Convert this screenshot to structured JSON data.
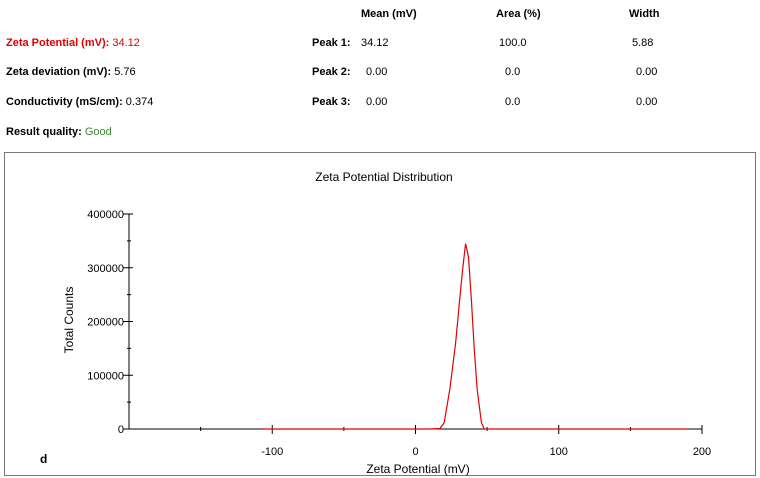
{
  "header": {
    "col_mean": "Mean (mV)",
    "col_area": "Area (%)",
    "col_width": "Width"
  },
  "summary": {
    "zeta_potential_label": "Zeta Potential (mV):",
    "zeta_potential_value": "34.12",
    "zeta_deviation_label": "Zeta deviation (mV):",
    "zeta_deviation_value": "5.76",
    "conductivity_label": "Conductivity (mS/cm):",
    "conductivity_value": "0.374",
    "result_quality_label": "Result quality:",
    "result_quality_value": "Good"
  },
  "peaks": [
    {
      "label": "Peak 1:",
      "mean": "34.12",
      "area": "100.0",
      "width": "5.88"
    },
    {
      "label": "Peak 2:",
      "mean": "0.00",
      "area": "0.0",
      "width": "0.00"
    },
    {
      "label": "Peak 3:",
      "mean": "0.00",
      "area": "0.0",
      "width": "0.00"
    }
  ],
  "colors": {
    "zeta_label": "#e00000",
    "quality_good": "#3a8a2a",
    "series_line": "#e00000"
  },
  "panel_letter": "d",
  "chart_data": {
    "type": "line",
    "title": "Zeta Potential Distribution",
    "xlabel": "Zeta Potential (mV)",
    "ylabel": "Total Counts",
    "xlim": [
      -200,
      200
    ],
    "ylim": [
      0,
      400000
    ],
    "x_ticks": [
      -100,
      0,
      100,
      200
    ],
    "y_ticks": [
      0,
      100000,
      200000,
      300000,
      400000
    ],
    "grid": false,
    "legend": "none",
    "series": [
      {
        "x": [
          -107,
          10,
          17,
          20,
          24,
          28,
          31,
          33,
          35,
          37,
          39,
          41,
          43,
          46,
          48,
          52,
          80,
          190
        ],
        "y": [
          0,
          0,
          1000,
          12000,
          75000,
          160000,
          245000,
          300000,
          345000,
          320000,
          240000,
          150000,
          75000,
          12000,
          0,
          0,
          0,
          0
        ]
      }
    ]
  }
}
